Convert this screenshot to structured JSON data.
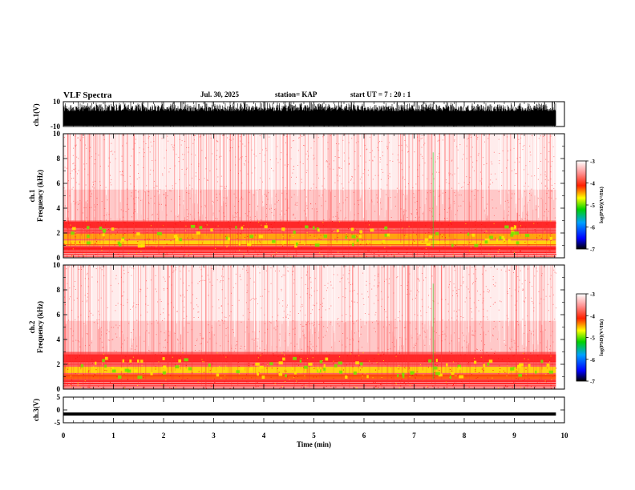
{
  "header": {
    "title": "VLF Spectra",
    "date": "Jul. 30, 2025",
    "station": "station= KAP",
    "start": "start  UT =   7 : 20 : 1"
  },
  "chart_data": [
    {
      "type": "line",
      "name": "ch1-waveform",
      "ylabel": "ch.1(V)",
      "ylim": [
        -10,
        10
      ],
      "yticks": [
        "10",
        "-10"
      ],
      "x_range_min": [
        0,
        9.83
      ]
    },
    {
      "type": "heatmap",
      "name": "ch1-spectrogram",
      "ylabel": "ch.1\nFrequency  (kHz)",
      "ylim": [
        0,
        10
      ],
      "yticks": [
        "0",
        "2",
        "4",
        "6",
        "8",
        "10"
      ],
      "xlim": [
        0,
        10
      ],
      "data_x_range_min": [
        0,
        9.83
      ],
      "colorbar": {
        "label": "log(PSD)(V²/Hz)",
        "range": [
          -7,
          -3
        ],
        "ticks": [
          "-3",
          "-4",
          "-5",
          "-6",
          "-7"
        ]
      }
    },
    {
      "type": "heatmap",
      "name": "ch2-spectrogram",
      "ylabel": "ch.2\nFrequency  (kHz)",
      "ylim": [
        0,
        10
      ],
      "yticks": [
        "0",
        "2",
        "4",
        "6",
        "8",
        "10"
      ],
      "xlim": [
        0,
        10
      ],
      "data_x_range_min": [
        0,
        9.83
      ],
      "colorbar": {
        "label": "log(PSD)(V²/Hz)",
        "range": [
          -7,
          -3
        ],
        "ticks": [
          "-3",
          "-4",
          "-5",
          "-6",
          "-7"
        ]
      }
    },
    {
      "type": "line",
      "name": "ch3-waveform",
      "ylabel": "ch.3(V)",
      "ylim": [
        -5,
        5
      ],
      "yticks": [
        "5",
        "0",
        "-5"
      ],
      "x_range_min": [
        0,
        9.83
      ],
      "approx_level": -1.5
    }
  ],
  "x_axis": {
    "label": "Time  (min)",
    "ticks": [
      "0",
      "1",
      "2",
      "3",
      "4",
      "5",
      "6",
      "7",
      "8",
      "9",
      "10"
    ],
    "xlim": [
      0,
      10
    ]
  },
  "colors": {
    "background": "#ffffff",
    "spectrum_red": "#ff1e1e",
    "spectrum_yellow": "#ffe600",
    "spectrum_green": "#23d223"
  }
}
